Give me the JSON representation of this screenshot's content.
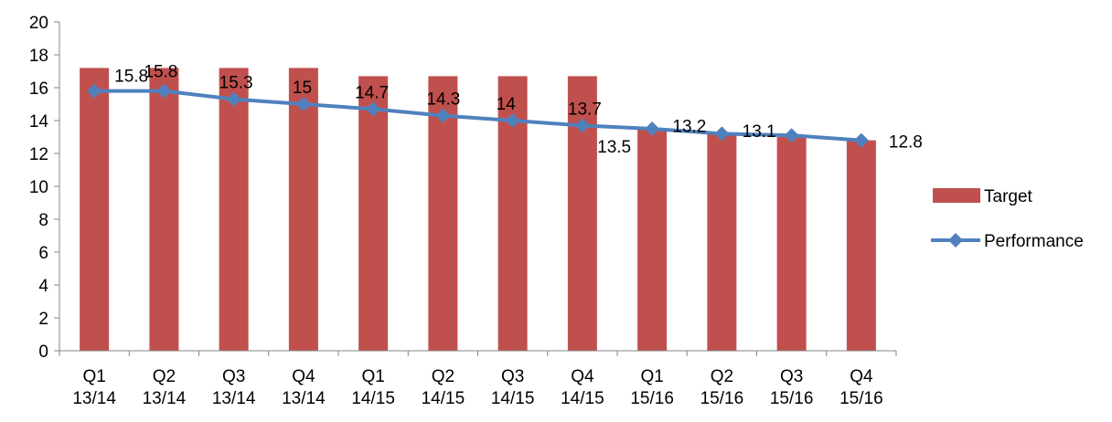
{
  "chart_data": {
    "type": "bar+line",
    "categories": [
      [
        "Q1",
        "13/14"
      ],
      [
        "Q2",
        "13/14"
      ],
      [
        "Q3",
        "13/14"
      ],
      [
        "Q4",
        "13/14"
      ],
      [
        "Q1",
        "14/15"
      ],
      [
        "Q2",
        "14/15"
      ],
      [
        "Q3",
        "14/15"
      ],
      [
        "Q4",
        "14/15"
      ],
      [
        "Q1",
        "15/16"
      ],
      [
        "Q2",
        "15/16"
      ],
      [
        "Q3",
        "15/16"
      ],
      [
        "Q4",
        "15/16"
      ]
    ],
    "series": [
      {
        "name": "Target",
        "kind": "bar",
        "color": "#C0504D",
        "values": [
          17.2,
          17.2,
          17.2,
          17.2,
          16.7,
          16.7,
          16.7,
          16.7,
          13.5,
          13.2,
          13.0,
          12.8
        ]
      },
      {
        "name": "Performance",
        "kind": "line",
        "marker": "diamond",
        "color": "#4F81BD",
        "values": [
          15.8,
          15.8,
          15.3,
          15.0,
          14.7,
          14.3,
          14.0,
          13.7,
          13.5,
          13.2,
          13.1,
          12.8
        ],
        "data_labels": [
          "15.8",
          "15.8",
          "15.3",
          "15",
          "14.7",
          "14.3",
          "14",
          "13.7",
          "13.5",
          "13.2",
          "13.1",
          "12.8"
        ]
      }
    ],
    "yticks": [
      "0",
      "2",
      "4",
      "6",
      "8",
      "10",
      "12",
      "14",
      "16",
      "18",
      "20"
    ],
    "ylim": [
      0,
      20
    ],
    "grid": false,
    "legend": "right"
  }
}
